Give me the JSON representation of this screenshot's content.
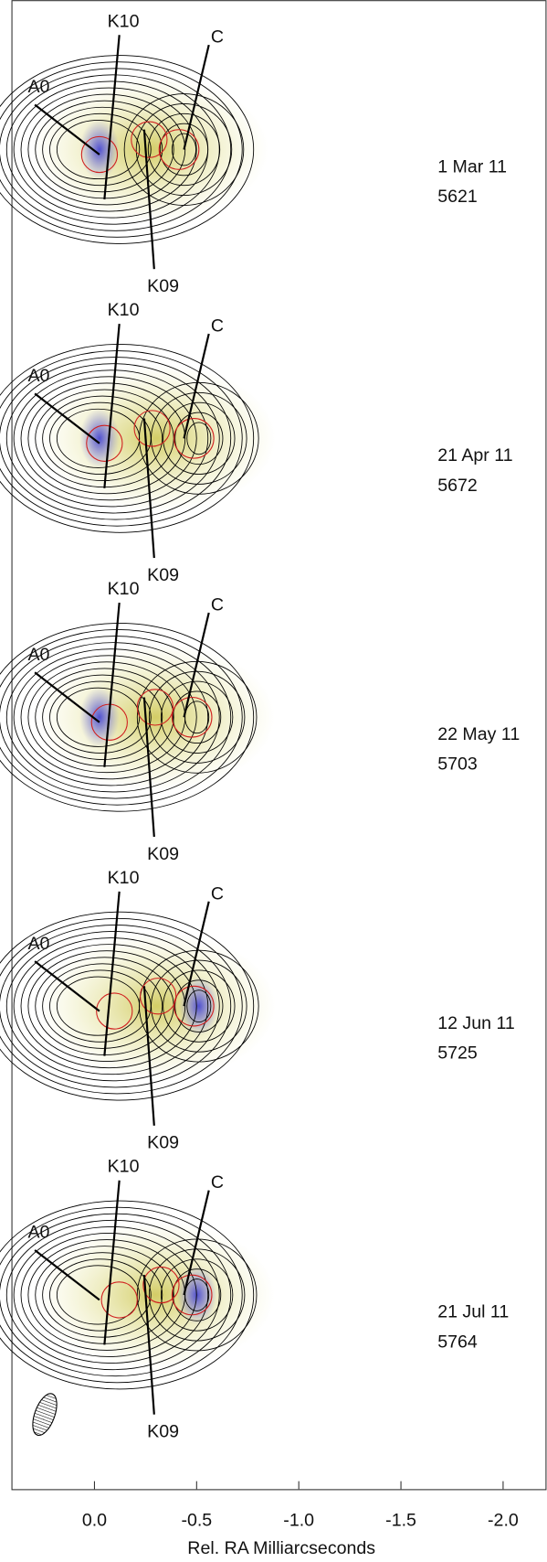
{
  "chart_data": {
    "type": "image",
    "xlabel": "Rel. RA Milliarcseconds",
    "xlim": [
      0.404,
      -2.21
    ],
    "xticks": [
      {
        "value": 0,
        "label": "0.0"
      },
      -0.5,
      {
        "value": -1,
        "label": "-1.0"
      },
      -1.5,
      {
        "value": -2,
        "label": "-2.0"
      }
    ],
    "panels": [
      {
        "date": "1 Mar 11",
        "jd": "5621",
        "components": [
          "A0",
          "K10",
          "C",
          "K09"
        ]
      },
      {
        "date": "21 Apr 11",
        "jd": "5672",
        "components": [
          "A0",
          "K10",
          "C",
          "K09"
        ]
      },
      {
        "date": "22 May 11",
        "jd": "5703",
        "components": [
          "A0",
          "K10",
          "C",
          "K09"
        ]
      },
      {
        "date": "12 Jun 11",
        "jd": "5725",
        "components": [
          "A0",
          "K10",
          "C",
          "K09"
        ]
      },
      {
        "date": "21 Jul 11",
        "jd": "5764",
        "components": [
          "A0",
          "K10",
          "C",
          "K09"
        ]
      }
    ]
  }
}
